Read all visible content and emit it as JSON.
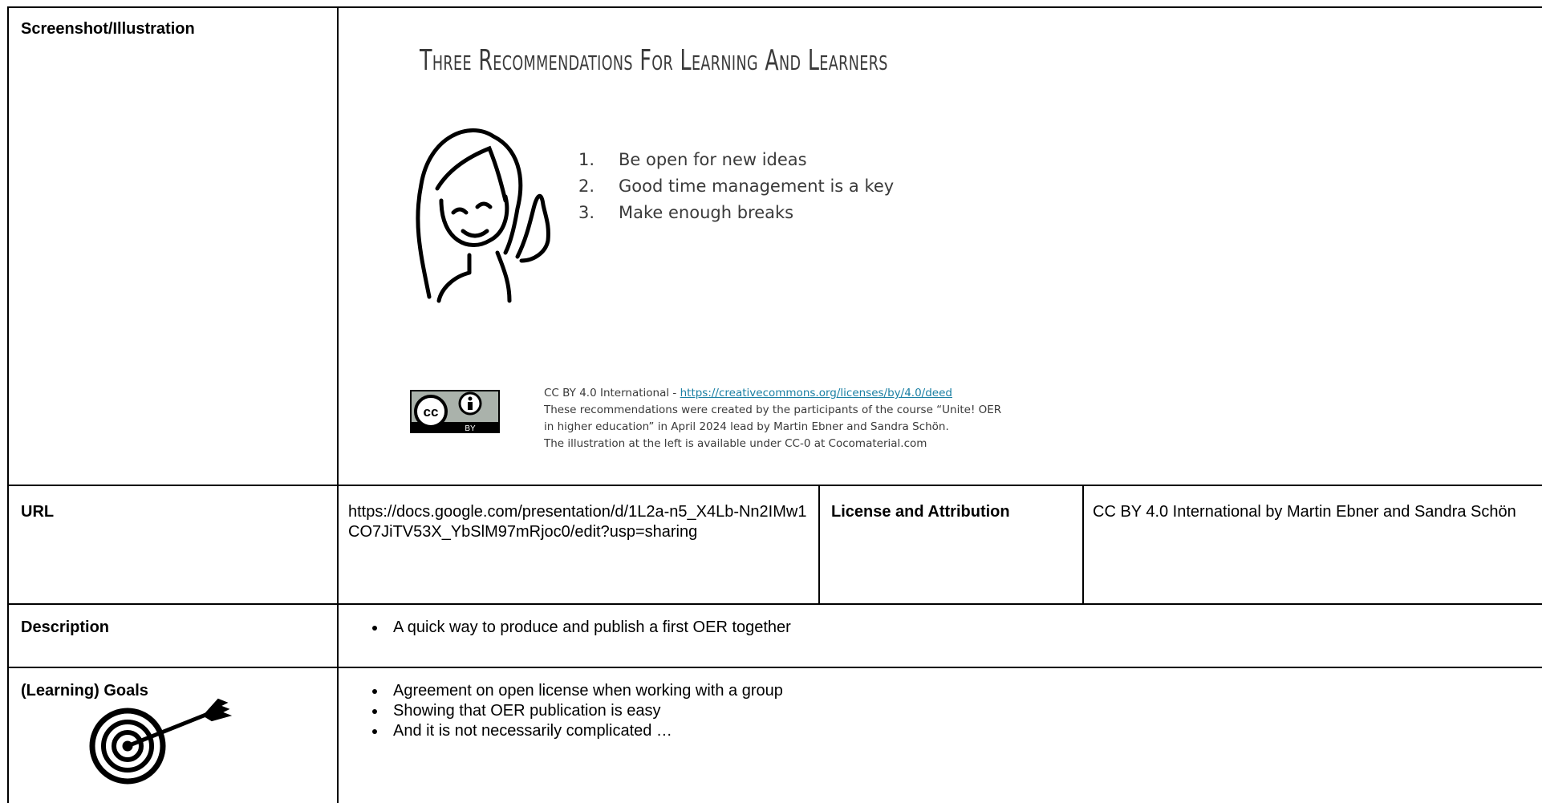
{
  "table": {
    "rows": [
      {
        "label": "Screenshot/Illustration",
        "slide": {
          "title": "Three Recommendations For Learning And Learners",
          "items": [
            {
              "number": "1.",
              "text": "Be open for new ideas"
            },
            {
              "number": "2.",
              "text": "Good time management is a key"
            },
            {
              "number": "3.",
              "text": "Make enough breaks"
            }
          ],
          "badge_cc": "cc",
          "badge_by": "BY",
          "license_prefix": "CC BY 4.0 International - ",
          "license_url": "https://creativecommons.org/licenses/by/4.0/deed",
          "credits": [
            "These recommendations were created by the participants of the course “Unite! OER",
            "in higher education” in April 2024 lead by Martin Ebner and Sandra Schön.",
            "The illustration at the left is available under CC-0 at Cocomaterial.com"
          ]
        }
      },
      {
        "label": "URL",
        "value": "https://docs.google.com/presentation/d/1L2a-n5_X4Lb-Nn2IMw1CO7JiTV53X_YbSlM97mRjoc0/edit?usp=sharing",
        "label2": "License and Attribution",
        "value2": "CC BY 4.0 International by Martin Ebner and Sandra Schön"
      },
      {
        "label": "Description",
        "bullets": [
          "A quick way to produce and publish a first OER together"
        ]
      },
      {
        "label": "(Learning) Goals",
        "bullets": [
          "Agreement on open license when working with a group",
          "Showing that OER publication is easy",
          "And it is not necessarily complicated …"
        ]
      }
    ]
  }
}
